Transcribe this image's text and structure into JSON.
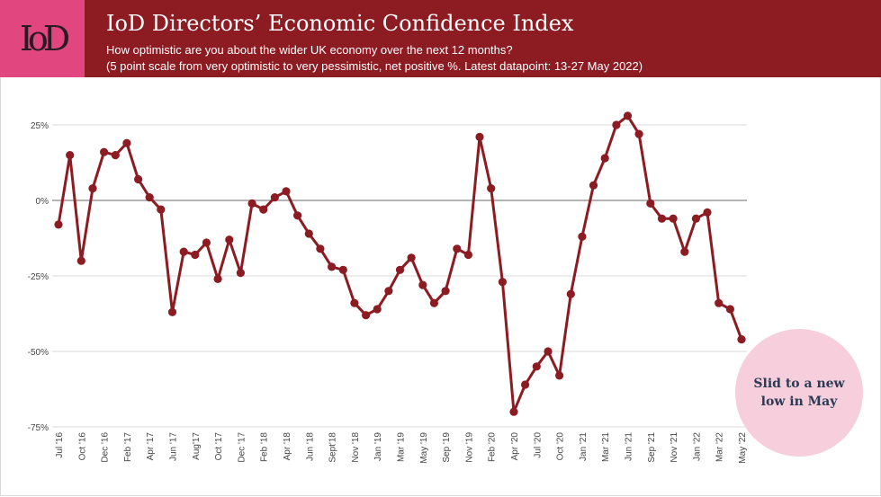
{
  "header": {
    "logo": "IoD",
    "title": "IoD Directors’ Economic Confidence Index",
    "subtitle_line1": "How optimistic are you about the wider UK economy over the next 12 months?",
    "subtitle_line2": "(5 point scale from very optimistic to very pessimistic, net positive %. Latest datapoint: 13-27 May 2022)"
  },
  "annotation": "Slid to a new low in May",
  "colors": {
    "header": "#8c1b22",
    "logo": "#e2467e",
    "line": "#8c1b22",
    "bubble": "#f7cfdc"
  },
  "chart_data": {
    "type": "line",
    "yticks": [
      "25%",
      "0%",
      "-25%",
      "-50%",
      "-75%"
    ],
    "ytick_values": [
      25,
      0,
      -25,
      -50,
      -75
    ],
    "ylim": [
      -75,
      25
    ],
    "xticks": [
      "Jul '16",
      "Oct '16",
      "Dec '16",
      "Feb '17",
      "Apr '17",
      "Jun '17",
      "Aug'17",
      "Oct '17",
      "Dec '17",
      "Feb '18",
      "Apr '18",
      "Jun '18",
      "Sept'18",
      "Nov '18",
      "Jan '19",
      "Mar '19",
      "May '19",
      "Sep '19",
      "Nov '19",
      "Feb '20",
      "Apr '20",
      "Jul '20",
      "Oct '20",
      "Jan '21",
      "Mar '21",
      "Jun '21",
      "Sep '21",
      "Nov '21",
      "Jan '22",
      "Mar '22",
      "May '22"
    ],
    "series": [
      {
        "values": [
          -8,
          15,
          -20,
          4,
          16,
          15,
          19,
          7,
          1,
          -3,
          -37,
          -17,
          -18,
          -14,
          -26,
          -13,
          -24,
          -1,
          -3,
          1,
          3,
          -5,
          -11,
          -16,
          -22,
          -23,
          -34,
          -38,
          -36,
          -30,
          -23,
          -19,
          -28,
          -34,
          -30,
          -16,
          -18,
          21,
          4,
          -27,
          -70,
          -61,
          -55,
          -50,
          -58,
          -31,
          -12,
          5,
          14,
          25,
          28,
          22,
          -1,
          -6,
          -6,
          -17,
          -6,
          -4,
          -34,
          -36,
          -46
        ]
      }
    ],
    "grid": true
  }
}
